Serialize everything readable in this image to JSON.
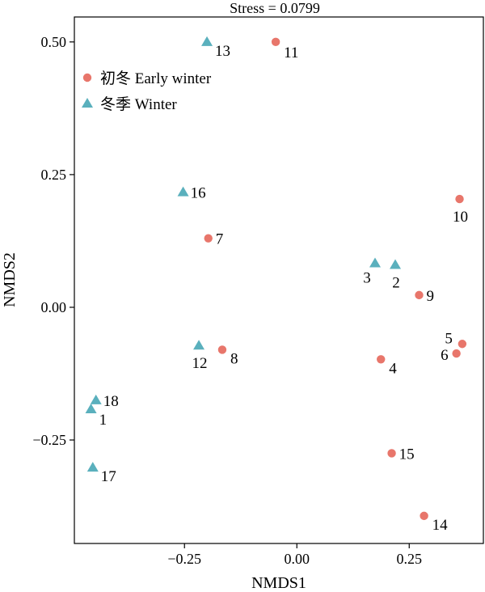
{
  "chart_data": {
    "type": "scatter",
    "title": "Stress = 0.0799",
    "xlabel": "NMDS1",
    "ylabel": "NMDS2",
    "xlim": [
      -0.495,
      0.415
    ],
    "ylim": [
      -0.445,
      0.547
    ],
    "xticks": [
      {
        "value": -0.25,
        "label": "−0.25"
      },
      {
        "value": 0.0,
        "label": "0.00"
      },
      {
        "value": 0.25,
        "label": "0.25"
      }
    ],
    "yticks": [
      {
        "value": -0.25,
        "label": "−0.25"
      },
      {
        "value": 0.0,
        "label": "0.00"
      },
      {
        "value": 0.25,
        "label": "0.25"
      },
      {
        "value": 0.5,
        "label": "0.50"
      }
    ],
    "grid": false,
    "legend": "top-left",
    "series": [
      {
        "name": "初冬 Early winter",
        "marker": "circle",
        "color": "#e8766b",
        "points": [
          {
            "label": "11",
            "x": -0.047,
            "y": 0.5,
            "label_pos": "below-right"
          },
          {
            "label": "10",
            "x": 0.362,
            "y": 0.204,
            "label_pos": "below"
          },
          {
            "label": "7",
            "x": -0.197,
            "y": 0.13,
            "label_pos": "right"
          },
          {
            "label": "9",
            "x": 0.272,
            "y": 0.023,
            "label_pos": "right"
          },
          {
            "label": "5",
            "x": 0.368,
            "y": -0.069,
            "label_pos": "left-up"
          },
          {
            "label": "6",
            "x": 0.355,
            "y": -0.087,
            "label_pos": "left"
          },
          {
            "label": "8",
            "x": -0.166,
            "y": -0.08,
            "label_pos": "right-down"
          },
          {
            "label": "4",
            "x": 0.187,
            "y": -0.098,
            "label_pos": "right-down"
          },
          {
            "label": "15",
            "x": 0.211,
            "y": -0.275,
            "label_pos": "right"
          },
          {
            "label": "14",
            "x": 0.283,
            "y": -0.393,
            "label_pos": "right-down"
          }
        ]
      },
      {
        "name": "冬季 Winter",
        "marker": "triangle",
        "color": "#5ab0bd",
        "points": [
          {
            "label": "13",
            "x": -0.2,
            "y": 0.5,
            "label_pos": "right-down"
          },
          {
            "label": "16",
            "x": -0.253,
            "y": 0.217,
            "label_pos": "right"
          },
          {
            "label": "3",
            "x": 0.174,
            "y": 0.083,
            "label_pos": "below-left"
          },
          {
            "label": "2",
            "x": 0.219,
            "y": 0.08,
            "label_pos": "below"
          },
          {
            "label": "12",
            "x": -0.218,
            "y": -0.072,
            "label_pos": "below"
          },
          {
            "label": "18",
            "x": -0.447,
            "y": -0.175,
            "label_pos": "right"
          },
          {
            "label": "1",
            "x": -0.458,
            "y": -0.192,
            "label_pos": "below-right"
          },
          {
            "label": "17",
            "x": -0.454,
            "y": -0.302,
            "label_pos": "right-down"
          }
        ]
      }
    ]
  }
}
